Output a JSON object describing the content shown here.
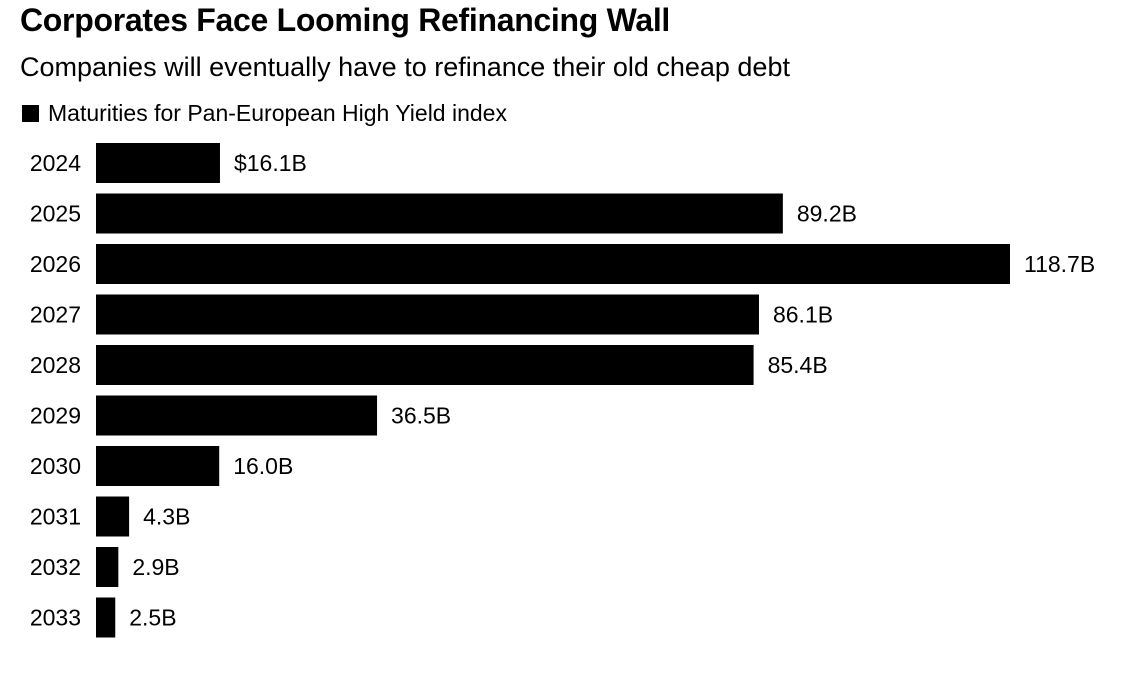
{
  "header": {
    "title": "Corporates Face Looming Refinancing Wall",
    "subtitle": "Companies will eventually have to refinance their old cheap debt"
  },
  "colors": {
    "bar": "#000000",
    "background": "#ffffff",
    "text": "#000000"
  },
  "chart_data": {
    "type": "bar",
    "orientation": "horizontal",
    "title": "Corporates Face Looming Refinancing Wall",
    "subtitle": "Companies will eventually have to refinance their old cheap debt",
    "legend": {
      "placement": "top-left",
      "entries": [
        "Maturities for Pan-European High Yield index"
      ]
    },
    "categories": [
      "2024",
      "2025",
      "2026",
      "2027",
      "2028",
      "2029",
      "2030",
      "2031",
      "2032",
      "2033"
    ],
    "series": [
      {
        "name": "Maturities for Pan-European High Yield index",
        "values": [
          16.1,
          89.2,
          118.7,
          86.1,
          85.4,
          36.5,
          16.0,
          4.3,
          2.9,
          2.5
        ]
      }
    ],
    "data_labels": [
      "$16.1B",
      "89.2B",
      "118.7B",
      "86.1B",
      "85.4B",
      "36.5B",
      "16.0B",
      "4.3B",
      "2.9B",
      "2.5B"
    ],
    "xlim": [
      0,
      118.7
    ],
    "xlabel": "",
    "ylabel": "",
    "grid": false
  }
}
